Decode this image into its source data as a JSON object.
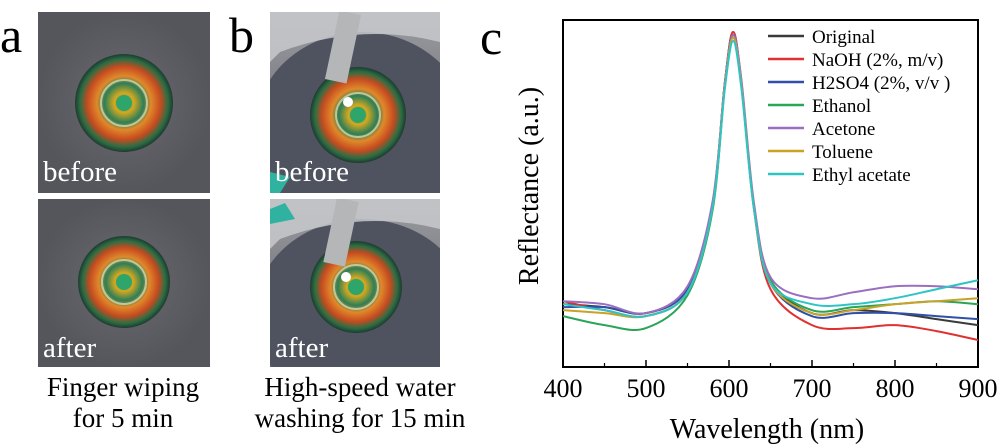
{
  "panels": {
    "a": {
      "letter": "a",
      "top_label": "before",
      "bottom_label": "after",
      "caption_line1": "Finger wiping",
      "caption_line2": "for 5 min"
    },
    "b": {
      "letter": "b",
      "top_label": "before",
      "bottom_label": "after",
      "caption_line1": "High-speed water",
      "caption_line2": "washing for 15 min"
    },
    "c": {
      "letter": "c"
    }
  },
  "colors": {
    "Original": "#3a3a3a",
    "NaOH": "#e03030",
    "H2SO4": "#2f4fa8",
    "Ethanol": "#2aa557",
    "Acetone": "#9a6fc0",
    "Toluene": "#c9a227",
    "Ethyl acetate": "#2ec4c4"
  },
  "chart_data": {
    "type": "line",
    "title": "",
    "xlabel": "Wavelength (nm)",
    "ylabel": "Reflectance (a.u.)",
    "xlim": [
      400,
      900
    ],
    "xticks": [
      400,
      500,
      600,
      700,
      800,
      900
    ],
    "y_ticks_shown": false,
    "grid": false,
    "legend_placement": "top-right",
    "x": [
      400,
      450,
      500,
      550,
      580,
      595,
      605,
      615,
      630,
      650,
      700,
      750,
      800,
      850,
      900
    ],
    "series": [
      {
        "name": "Original",
        "values": [
          0.09,
          0.08,
          0.06,
          0.14,
          0.42,
          0.83,
          1.0,
          0.83,
          0.42,
          0.17,
          0.06,
          0.07,
          0.06,
          0.04,
          0.02
        ]
      },
      {
        "name": "NaOH (2%, m/v)",
        "values": [
          0.1,
          0.07,
          0.05,
          0.13,
          0.41,
          0.83,
          1.0,
          0.83,
          0.41,
          0.14,
          0.02,
          0.01,
          0.02,
          0.0,
          -0.03
        ]
      },
      {
        "name": "H2SO4 (2%, v/v )",
        "values": [
          0.08,
          0.08,
          0.06,
          0.14,
          0.42,
          0.83,
          0.99,
          0.83,
          0.42,
          0.16,
          0.05,
          0.06,
          0.06,
          0.05,
          0.04
        ]
      },
      {
        "name": "Ethanol",
        "values": [
          0.05,
          0.02,
          0.01,
          0.12,
          0.4,
          0.82,
          0.99,
          0.82,
          0.42,
          0.17,
          0.07,
          0.08,
          0.09,
          0.1,
          0.09
        ]
      },
      {
        "name": "Acetone",
        "values": [
          0.1,
          0.09,
          0.06,
          0.15,
          0.43,
          0.83,
          0.99,
          0.84,
          0.43,
          0.18,
          0.11,
          0.13,
          0.15,
          0.15,
          0.14
        ]
      },
      {
        "name": "Toluene",
        "values": [
          0.07,
          0.06,
          0.05,
          0.13,
          0.41,
          0.82,
          0.98,
          0.82,
          0.41,
          0.16,
          0.06,
          0.07,
          0.09,
          0.1,
          0.11
        ]
      },
      {
        "name": "Ethyl acetate",
        "values": [
          0.09,
          0.07,
          0.05,
          0.13,
          0.41,
          0.81,
          0.97,
          0.81,
          0.41,
          0.16,
          0.09,
          0.09,
          0.11,
          0.14,
          0.17
        ]
      }
    ],
    "legend": [
      {
        "label": "Original",
        "color_key": "Original"
      },
      {
        "label": "NaOH (2%, m/v)",
        "color_key": "NaOH"
      },
      {
        "label": "H2SO4 (2%, v/v )",
        "color_key": "H2SO4"
      },
      {
        "label": "Ethanol",
        "color_key": "Ethanol"
      },
      {
        "label": "Acetone",
        "color_key": "Acetone"
      },
      {
        "label": "Toluene",
        "color_key": "Toluene"
      },
      {
        "label": "Ethyl acetate",
        "color_key": "Ethyl acetate"
      }
    ]
  }
}
